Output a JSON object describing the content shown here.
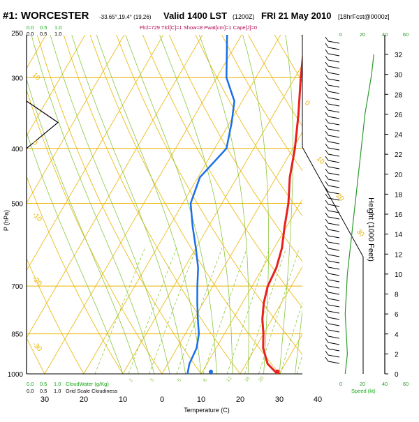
{
  "header": {
    "station": "#1: WORCESTER",
    "coords": "-33.65°,19.4° (19,26)",
    "valid": "Valid 1400 LST",
    "utc": "(1200Z)",
    "date": "FRI 21 May 2010",
    "forecast": "[18hrFcst@0000z]",
    "params": "Plcl=729 Tlcl[C]=1 Show=8 Pwat[cm]=1 Cape[J]=0"
  },
  "cloud_scale_top": [
    "0.0",
    "0.5",
    "1.0"
  ],
  "cloud_scale_bottom": [
    "0.0",
    "0.5",
    "1.0"
  ],
  "cloudwater_label": "CloudWater (g/Kg)",
  "cloudiness_label": "Grid Scale Cloudiness",
  "speed_label": "Speed (kt)",
  "colors": {
    "isobar": "#e8b400",
    "isotherm": "#e8b400",
    "dry_adiabat": "#e8b400",
    "moist_adiabat": "#8cc63f",
    "mixing_ratio": "#8cc63f",
    "temperature": "#e8201e",
    "dewpoint": "#1a6fe8",
    "wind_speed": "#2a9a2a",
    "cloud_tick": "#10a810"
  },
  "chart_data": {
    "type": "line",
    "title": "",
    "xlabel": "Temperature (C)",
    "ylabel": "P (hPa)",
    "y2label": "Height (1000 Feet)",
    "pressure_ticks": [
      250,
      300,
      400,
      500,
      700,
      850,
      1000
    ],
    "temp_ticks": [
      30,
      20,
      10,
      0,
      10,
      20,
      30,
      40
    ],
    "height_ticks": [
      0,
      2,
      4,
      6,
      8,
      10,
      12,
      14,
      16,
      18,
      20,
      22,
      24,
      26,
      28,
      30,
      32
    ],
    "dry_adiabat_labels": [
      "10",
      "0",
      "-10",
      "-20",
      "-30",
      "0",
      "10",
      "20",
      "30"
    ],
    "moist_adiabat_labels": [
      "2",
      "3",
      "5",
      "8",
      "12",
      "16",
      "20"
    ],
    "speed_ticks_top": [
      "0",
      "20",
      "40",
      "60"
    ],
    "speed_ticks_bottom": [
      "0",
      "20",
      "40",
      "60"
    ],
    "temperature": {
      "p": [
        1000,
        960,
        900,
        850,
        800,
        750,
        700,
        650,
        600,
        550,
        500,
        450,
        400,
        350,
        300,
        250
      ],
      "t": [
        29.5,
        25.5,
        22.0,
        20.0,
        17.5,
        15.5,
        14.0,
        13.5,
        12.0,
        9.5,
        7.0,
        3.5,
        0.5,
        -3.5,
        -8.5,
        -14.0
      ]
    },
    "dewpoint": {
      "p": [
        1000,
        960,
        900,
        850,
        800,
        750,
        700,
        650,
        600,
        550,
        500,
        450,
        400,
        360,
        330,
        300,
        250
      ],
      "td": [
        6.5,
        5.5,
        5.0,
        3.5,
        1.0,
        -1.5,
        -4.0,
        -6.5,
        -10.0,
        -14.0,
        -18.0,
        -19.5,
        -17.0,
        -19.5,
        -22.0,
        -27.5,
        -34.0
      ]
    },
    "surface_dewpoint_marker": 12.5,
    "cloudiness": {
      "p": [
        330,
        360,
        400
      ],
      "value": [
        0.0,
        1.0,
        0.0
      ]
    },
    "wind_speed": {
      "height_kft": [
        0,
        1,
        2,
        4,
        6,
        8,
        10,
        12,
        14,
        16,
        18,
        20,
        22,
        24,
        26,
        28,
        30,
        32
      ],
      "kt": [
        4,
        5,
        6,
        5,
        4,
        5,
        6,
        8,
        10,
        12,
        14,
        16,
        18,
        20,
        22,
        25,
        28,
        30
      ]
    }
  }
}
